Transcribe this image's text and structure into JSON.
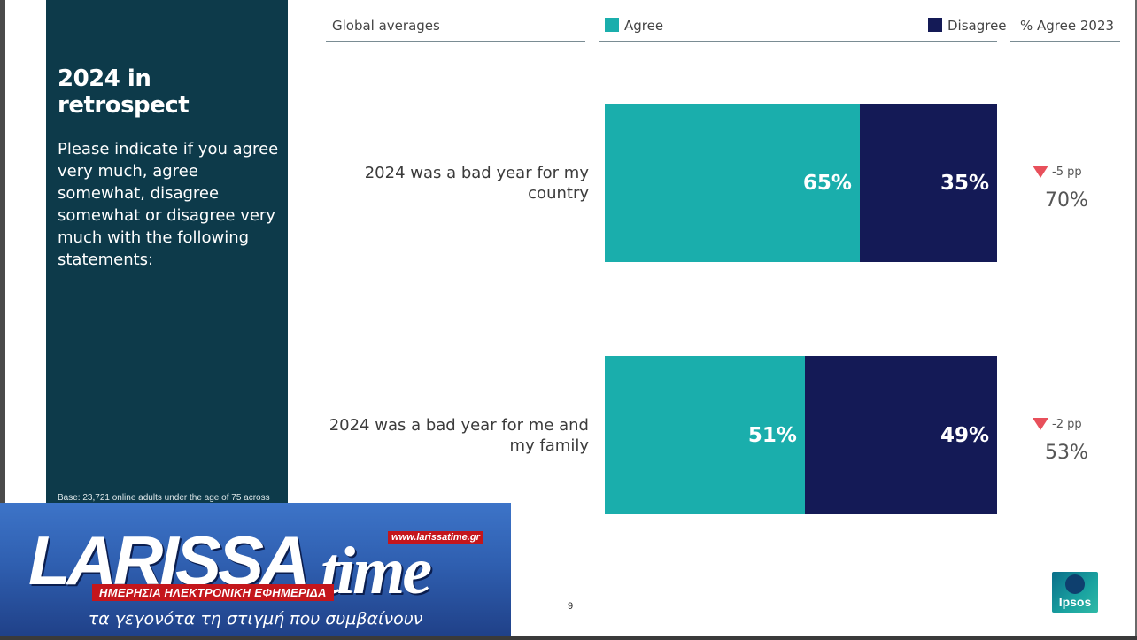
{
  "panel": {
    "title": "2024 in retrospect",
    "question": "Please indicate if you agree very much, agree somewhat, disagree somewhat or disagree very much with the following statements:",
    "base_note": "Base: 23,721 online adults under the age of 75 across"
  },
  "header": {
    "section": "Global averages",
    "agree": "Agree",
    "disagree": "Disagree",
    "prev": "% Agree 2023"
  },
  "colors": {
    "agree": "#1aaeac",
    "disagree": "#141a56",
    "panel": "#0d3a4a",
    "down_arrow": "#e8505b"
  },
  "chart_data": {
    "type": "bar",
    "orientation": "horizontal-stacked",
    "categories": [
      "2024 was a bad year for my country",
      "2024 was a bad year for me and my family"
    ],
    "series": [
      {
        "name": "Agree",
        "values": [
          65,
          51
        ],
        "labels": [
          "65%",
          "51%"
        ]
      },
      {
        "name": "Disagree",
        "values": [
          35,
          49
        ],
        "labels": [
          "35%",
          "49%"
        ]
      }
    ],
    "agree_2023": [
      70,
      53
    ],
    "agree_2023_labels": [
      "70%",
      "53%"
    ],
    "change": [
      "-5 pp",
      "-2 pp"
    ],
    "xlim": [
      0,
      100
    ],
    "legend": "top"
  },
  "page_number": "9",
  "logo": {
    "name": "Ipsos"
  },
  "banner": {
    "brand": "LARISSA",
    "brand_time": "time",
    "url": "www.larissatime.gr",
    "strap": "ΗΜΕΡΗΣΙΑ ΗΛΕΚΤΡΟΝΙΚΗ ΕΦΗΜΕΡΙΔΑ",
    "tagline": "τα γεγονότα τη στιγμή που συμβαίνουν"
  }
}
